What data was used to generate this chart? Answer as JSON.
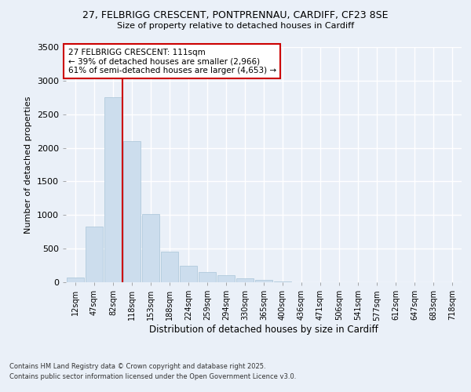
{
  "title_line1": "27, FELBRIGG CRESCENT, PONTPRENNAU, CARDIFF, CF23 8SE",
  "title_line2": "Size of property relative to detached houses in Cardiff",
  "xlabel": "Distribution of detached houses by size in Cardiff",
  "ylabel": "Number of detached properties",
  "categories": [
    "12sqm",
    "47sqm",
    "82sqm",
    "118sqm",
    "153sqm",
    "188sqm",
    "224sqm",
    "259sqm",
    "294sqm",
    "330sqm",
    "365sqm",
    "400sqm",
    "436sqm",
    "471sqm",
    "506sqm",
    "541sqm",
    "577sqm",
    "612sqm",
    "647sqm",
    "683sqm",
    "718sqm"
  ],
  "values": [
    75,
    830,
    2750,
    2100,
    1020,
    460,
    240,
    150,
    100,
    60,
    30,
    10,
    5,
    3,
    2,
    1,
    1,
    1,
    0,
    0,
    0
  ],
  "bar_color": "#ccdded",
  "bar_edge_color": "#a8c4d8",
  "red_line_index": 3,
  "annotation_title": "27 FELBRIGG CRESCENT: 111sqm",
  "annotation_line1": "← 39% of detached houses are smaller (2,966)",
  "annotation_line2": "61% of semi-detached houses are larger (4,653) →",
  "ylim": [
    0,
    3500
  ],
  "yticks": [
    0,
    500,
    1000,
    1500,
    2000,
    2500,
    3000,
    3500
  ],
  "footer_line1": "Contains HM Land Registry data © Crown copyright and database right 2025.",
  "footer_line2": "Contains public sector information licensed under the Open Government Licence v3.0.",
  "bg_color": "#eaf0f8",
  "grid_color": "#ffffff",
  "annotation_box_color": "#ffffff",
  "annotation_box_edge": "#cc0000"
}
